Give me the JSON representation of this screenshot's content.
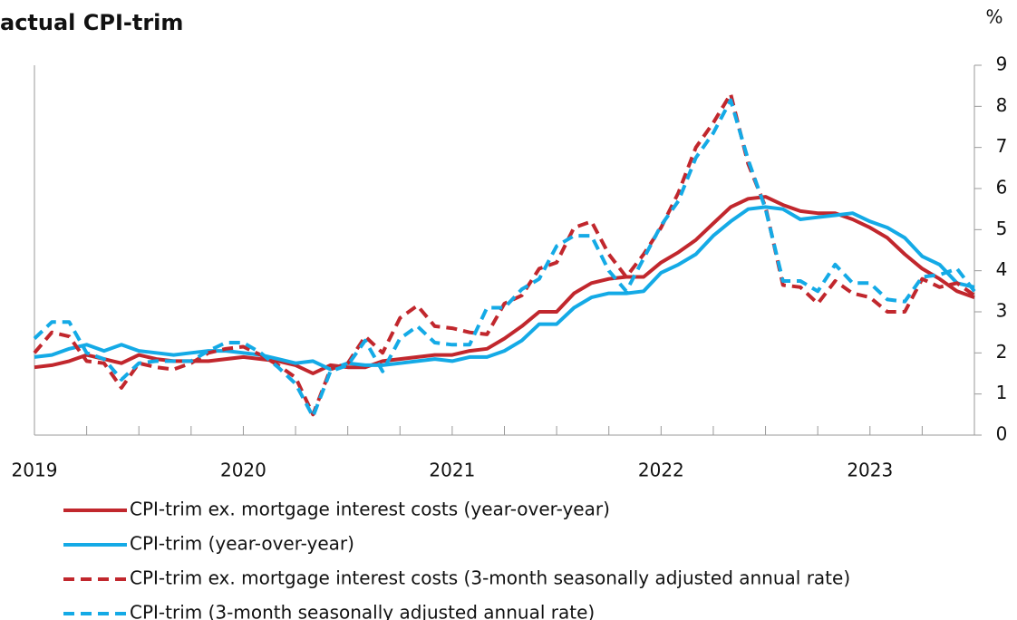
{
  "chart_data": {
    "type": "line",
    "title": "actual CPI-trim",
    "y_unit": "%",
    "categories": [
      "2019",
      null,
      null,
      null,
      null,
      null,
      null,
      null,
      null,
      null,
      null,
      null,
      "2020",
      null,
      null,
      null,
      null,
      null,
      null,
      null,
      null,
      null,
      null,
      null,
      "2021",
      null,
      null,
      null,
      null,
      null,
      null,
      null,
      null,
      null,
      null,
      null,
      "2022",
      null,
      null,
      null,
      null,
      null,
      null,
      null,
      null,
      null,
      null,
      null,
      "2023",
      null,
      null,
      null,
      null,
      null,
      null
    ],
    "ylim": [
      0,
      9
    ],
    "yticks": [
      0,
      1,
      2,
      3,
      4,
      5,
      6,
      7,
      8,
      9
    ],
    "series": [
      {
        "name": "CPI-trim ex. mortgage interest costs (year-over-year)",
        "color": "#c1272d",
        "style": "solid",
        "values": [
          1.65,
          1.7,
          1.8,
          1.95,
          1.85,
          1.75,
          1.95,
          1.85,
          1.8,
          1.8,
          1.8,
          1.85,
          1.9,
          1.85,
          1.8,
          1.7,
          1.5,
          1.7,
          1.65,
          1.65,
          1.8,
          1.85,
          1.9,
          1.95,
          1.95,
          2.05,
          2.1,
          2.35,
          2.65,
          3.0,
          3.0,
          3.45,
          3.7,
          3.8,
          3.85,
          3.85,
          4.2,
          4.45,
          4.75,
          5.15,
          5.55,
          5.75,
          5.8,
          5.6,
          5.45,
          5.4,
          5.4,
          5.25,
          5.05,
          4.8,
          4.4,
          4.05,
          3.8,
          3.5,
          3.35
        ]
      },
      {
        "name": "CPI-trim (year-over-year)",
        "color": "#14aae6",
        "style": "solid",
        "values": [
          1.9,
          1.95,
          2.1,
          2.2,
          2.05,
          2.2,
          2.05,
          2.0,
          1.95,
          2.0,
          2.05,
          2.05,
          2.0,
          1.95,
          1.85,
          1.75,
          1.8,
          1.6,
          1.75,
          1.7,
          1.7,
          1.75,
          1.8,
          1.85,
          1.8,
          1.9,
          1.9,
          2.05,
          2.3,
          2.7,
          2.7,
          3.1,
          3.35,
          3.45,
          3.45,
          3.5,
          3.95,
          4.15,
          4.4,
          4.85,
          5.2,
          5.5,
          5.55,
          5.5,
          5.25,
          5.3,
          5.35,
          5.4,
          5.2,
          5.05,
          4.8,
          4.35,
          4.15,
          3.7,
          3.6
        ]
      },
      {
        "name": "CPI-trim ex. mortgage interest costs (3-month seasonally adjusted annual rate)",
        "color": "#c1272d",
        "style": "dashed",
        "values": [
          2.0,
          2.5,
          2.4,
          1.8,
          1.75,
          1.15,
          1.75,
          1.65,
          1.6,
          1.75,
          2.0,
          2.1,
          2.15,
          1.95,
          1.7,
          1.4,
          0.5,
          1.6,
          1.75,
          2.4,
          2.0,
          2.85,
          3.15,
          2.65,
          2.6,
          2.5,
          2.45,
          3.2,
          3.4,
          4.05,
          4.2,
          5.05,
          5.2,
          4.4,
          3.85,
          4.4,
          5.05,
          5.9,
          7.0,
          7.6,
          8.3,
          6.6,
          5.55,
          3.65,
          3.6,
          3.2,
          3.75,
          3.45,
          3.35,
          3.0,
          3.0,
          3.8,
          3.6,
          3.7,
          3.4
        ]
      },
      {
        "name": "CPI-trim (3-month seasonally adjusted annual rate)",
        "color": "#14aae6",
        "style": "dashed",
        "values": [
          2.35,
          2.75,
          2.75,
          2.0,
          1.85,
          1.35,
          1.75,
          1.8,
          1.8,
          1.8,
          2.05,
          2.25,
          2.25,
          2.0,
          1.65,
          1.25,
          0.45,
          1.55,
          1.7,
          2.3,
          1.55,
          2.35,
          2.65,
          2.25,
          2.2,
          2.2,
          3.1,
          3.1,
          3.55,
          3.8,
          4.6,
          4.85,
          4.85,
          4.0,
          3.5,
          4.3,
          5.1,
          5.7,
          6.75,
          7.35,
          8.15,
          6.7,
          5.5,
          3.75,
          3.75,
          3.5,
          4.15,
          3.7,
          3.7,
          3.3,
          3.25,
          3.85,
          3.9,
          4.05,
          3.5
        ]
      }
    ]
  }
}
